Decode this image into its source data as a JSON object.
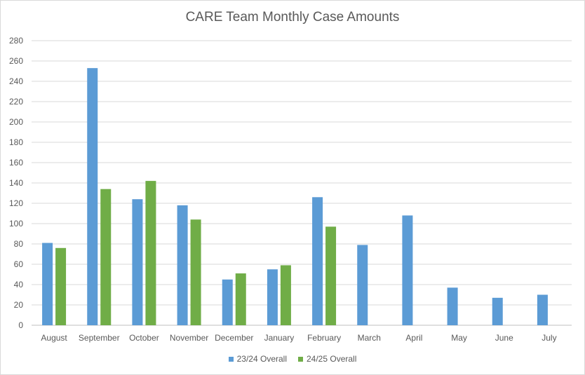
{
  "chart_data": {
    "type": "bar",
    "title": "CARE Team Monthly Case Amounts",
    "xlabel": "",
    "ylabel": "",
    "ylim": [
      0,
      280
    ],
    "yticks": [
      0,
      20,
      40,
      60,
      80,
      100,
      120,
      140,
      160,
      180,
      200,
      220,
      240,
      260,
      280
    ],
    "grid": true,
    "legend": "bottom",
    "categories": [
      "August",
      "September",
      "October",
      "November",
      "December",
      "January",
      "February",
      "March",
      "April",
      "May",
      "June",
      "July"
    ],
    "series": [
      {
        "name": "23/24 Overall",
        "color": "#5B9BD5",
        "values": [
          81,
          253,
          124,
          118,
          45,
          55,
          126,
          79,
          108,
          37,
          27,
          30
        ]
      },
      {
        "name": "24/25 Overall",
        "color": "#70AD47",
        "values": [
          76,
          134,
          142,
          104,
          51,
          59,
          97,
          null,
          null,
          null,
          null,
          null
        ]
      }
    ]
  }
}
